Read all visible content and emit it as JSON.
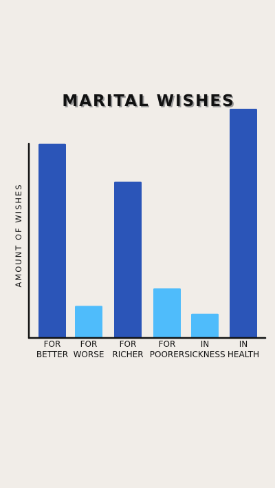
{
  "chart_data": {
    "type": "bar",
    "title": "MARITAL WISHES",
    "xlabel": "",
    "ylabel": "AMOUNT OF WISHES",
    "categories": [
      [
        "FOR",
        "BETTER"
      ],
      [
        "FOR",
        "WORSE"
      ],
      [
        "FOR",
        "RICHER"
      ],
      [
        "FOR",
        "POORER"
      ],
      [
        "IN",
        "SICKNESS"
      ],
      [
        "IN",
        "HEALTH"
      ]
    ],
    "values": [
      100,
      16.5,
      80.5,
      25.5,
      12.5,
      118
    ],
    "bar_colors": [
      "#2b55b8",
      "#4fbcfb",
      "#2b55b8",
      "#4fbcfb",
      "#4fbcfb",
      "#2b55b8"
    ],
    "ylim": [
      0,
      118
    ],
    "grid": false,
    "legend": "none"
  }
}
